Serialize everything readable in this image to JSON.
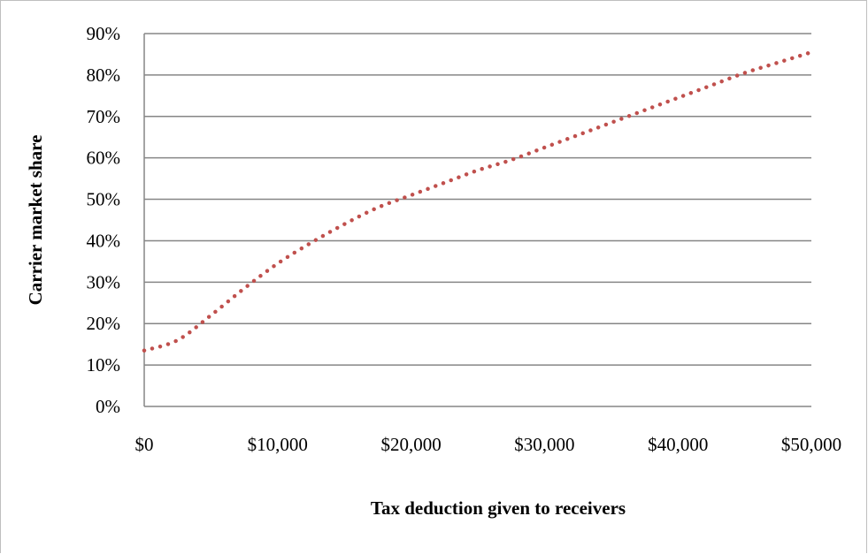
{
  "chart_data": {
    "type": "line",
    "title": "",
    "xlabel": "Tax deduction given to receivers",
    "ylabel": "Carrier market share",
    "xlim": [
      0,
      50000
    ],
    "ylim": [
      0,
      90
    ],
    "x_ticks": [
      0,
      10000,
      20000,
      30000,
      40000,
      50000
    ],
    "x_tick_labels": [
      "$0",
      "$10,000",
      "$20,000",
      "$30,000",
      "$40,000",
      "$50,000"
    ],
    "y_ticks": [
      0,
      10,
      20,
      30,
      40,
      50,
      60,
      70,
      80,
      90
    ],
    "y_tick_labels": [
      "0%",
      "10%",
      "20%",
      "30%",
      "40%",
      "50%",
      "60%",
      "70%",
      "80%",
      "90%"
    ],
    "grid": "horizontal",
    "line_style": "dotted",
    "series_color": "#c0504d",
    "series": [
      {
        "x": [
          0,
          2500,
          5000,
          7500,
          10000,
          12500,
          15000,
          17500,
          20000,
          22500,
          25000,
          27500,
          30000,
          32500,
          35000,
          37500,
          40000,
          42500,
          45000,
          47500,
          50000
        ],
        "values": [
          13.5,
          16,
          22,
          28.5,
          34.5,
          39.5,
          44,
          48,
          51,
          54,
          57,
          59.5,
          62.5,
          65.5,
          68.5,
          71.5,
          74.5,
          77.5,
          80.5,
          83,
          85.5
        ]
      }
    ]
  }
}
